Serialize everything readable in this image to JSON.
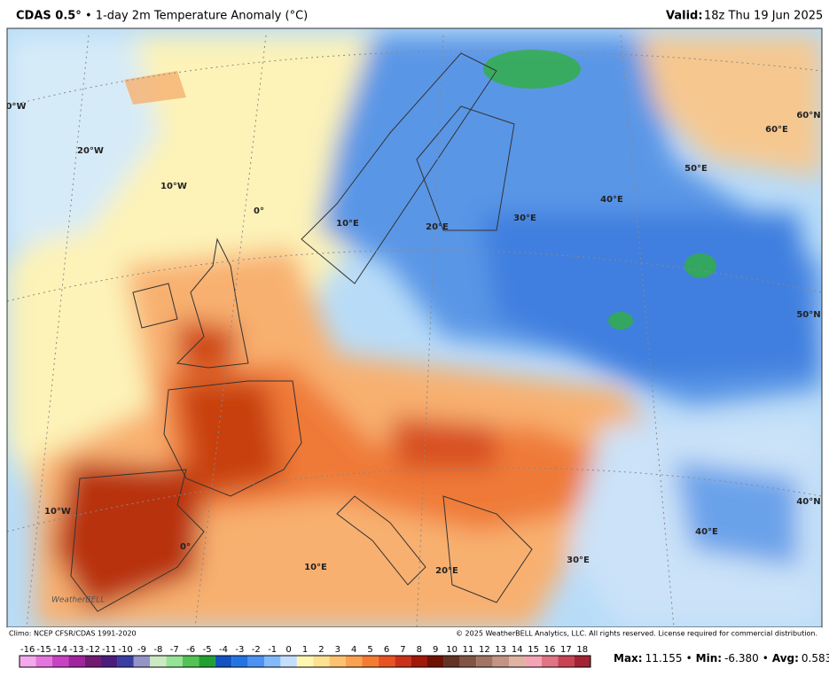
{
  "header": {
    "model": "CDAS 0.5°",
    "description": "• 1-day 2m Temperature Anomaly (°C)",
    "valid_label": "Valid:",
    "valid_time": "18z Thu 19 Jun 2025"
  },
  "map": {
    "grid_labels": [
      "0°W",
      "20°W",
      "10°W",
      "0°",
      "10°E",
      "20°E",
      "30°E",
      "40°E",
      "50°E",
      "60°E",
      "60°N",
      "50°N",
      "40°N",
      "40°E",
      "30°E",
      "20°E",
      "10°E",
      "0°",
      "10°W"
    ],
    "logo": "WeatherBELL",
    "climo": "Climo: NCEP CFSR/CDAS 1991-2020",
    "copyright": "© 2025 WeatherBELL Analytics, LLC. All rights reserved. License required for commercial distribution."
  },
  "colorbar": {
    "labels": [
      "-16",
      "-15",
      "-14",
      "-13",
      "-12",
      "-11",
      "-10",
      "-9",
      "-8",
      "-7",
      "-6",
      "-5",
      "-4",
      "-3",
      "-2",
      "-1",
      "0",
      "1",
      "2",
      "3",
      "4",
      "5",
      "6",
      "7",
      "8",
      "9",
      "10",
      "11",
      "12",
      "13",
      "14",
      "15",
      "16",
      "17",
      "18"
    ],
    "colors": [
      "#f4a8ec",
      "#e276dc",
      "#c843c2",
      "#a0239f",
      "#701a72",
      "#4c1c7c",
      "#3a3da2",
      "#9494c6",
      "#cbe9c3",
      "#96e296",
      "#55c255",
      "#22a033",
      "#1452c2",
      "#2373e2",
      "#4c92f0",
      "#84baf8",
      "#c4defc",
      "#fff6b2",
      "#fde091",
      "#fcc272",
      "#faa152",
      "#f47b32",
      "#e85322",
      "#c9321a",
      "#a0190a",
      "#6e1202",
      "#623424",
      "#825444",
      "#a27464",
      "#c29484",
      "#e0b2a2",
      "#f2a4b4",
      "#e07484",
      "#c84454",
      "#a22434"
    ]
  },
  "stats": [
    {
      "label": "Max:",
      "value": "11.155"
    },
    {
      "sep": "•",
      "label": "Min:",
      "value": "-6.380"
    },
    {
      "sep": "•",
      "label": "Avg:",
      "value": "0.583"
    }
  ]
}
